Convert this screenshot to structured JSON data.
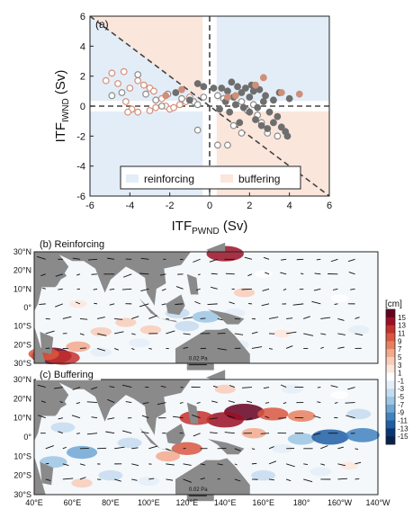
{
  "chart_data": [
    {
      "panel_label": "(a)",
      "type": "scatter",
      "xlabel_main": "ITF",
      "xlabel_sub": "PWND",
      "xlabel_unit": " (Sv)",
      "ylabel_main": "ITF",
      "ylabel_sub": "IWND",
      "ylabel_unit": " (Sv)",
      "xlim": [
        -6,
        6
      ],
      "ylim": [
        -6,
        6
      ],
      "xticks": [
        -6,
        -4,
        -2,
        0,
        2,
        4,
        6
      ],
      "yticks": [
        -6,
        -4,
        -2,
        0,
        2,
        4,
        6
      ],
      "region_colors": {
        "reinforcing": "#e3edf8",
        "buffering": "#fbe6dc"
      },
      "legend": {
        "reinforcing": "reinforcing",
        "buffering": "buffering",
        "placement": "bottom-center"
      },
      "marker_colors": {
        "filled": "#6e6e6e",
        "filled_orange": "#cf8f78",
        "open_gray": "#8c8c8c",
        "open_orange": "#d4907a"
      },
      "series": [
        {
          "style": "open_orange",
          "points": [
            [
              -5.2,
              1.7
            ],
            [
              -4.9,
              2.2
            ],
            [
              -4.3,
              2.3
            ],
            [
              -4.6,
              1.5
            ],
            [
              -4.0,
              1.2
            ],
            [
              -3.6,
              1.7
            ],
            [
              -3.3,
              1.4
            ],
            [
              -3.0,
              1.2
            ],
            [
              -2.8,
              1.0
            ],
            [
              -4.2,
              0.3
            ],
            [
              -3.9,
              -0.2
            ],
            [
              -4.1,
              -0.4
            ],
            [
              -3.6,
              -0.4
            ],
            [
              -3.0,
              -0.3
            ],
            [
              -2.7,
              -0.1
            ],
            [
              -2.2,
              0.0
            ],
            [
              -2.0,
              -0.2
            ],
            [
              -1.8,
              -0.1
            ],
            [
              -1.5,
              0.1
            ],
            [
              -1.2,
              0.3
            ],
            [
              -1.0,
              0.6
            ],
            [
              -2.4,
              0.5
            ]
          ]
        },
        {
          "style": "open_gray",
          "points": [
            [
              -4.9,
              0.7
            ],
            [
              -4.4,
              0.9
            ],
            [
              -3.6,
              2.1
            ],
            [
              -3.2,
              0.8
            ],
            [
              -2.7,
              0.4
            ],
            [
              -2.4,
              0.0
            ],
            [
              -2.1,
              0.8
            ],
            [
              -1.4,
              0.5
            ],
            [
              -0.8,
              0.3
            ],
            [
              -0.6,
              -1.6
            ],
            [
              0.4,
              -2.6
            ],
            [
              0.9,
              -2.6
            ],
            [
              1.2,
              -1.3
            ],
            [
              1.6,
              -1.8
            ],
            [
              1.9,
              -0.3
            ],
            [
              2.4,
              -0.6
            ],
            [
              2.6,
              -1.1
            ],
            [
              2.9,
              -1.8
            ],
            [
              3.4,
              -2.0
            ],
            [
              0.7,
              0.5
            ],
            [
              1.6,
              0.3
            ],
            [
              2.2,
              0.1
            ],
            [
              -0.3,
              0.6
            ],
            [
              0.4,
              0.7
            ],
            [
              -0.6,
              0.1
            ]
          ]
        },
        {
          "style": "filled",
          "points": [
            [
              -1.7,
              0.9
            ],
            [
              -1.0,
              0.4
            ],
            [
              -0.6,
              1.5
            ],
            [
              -0.3,
              1.3
            ],
            [
              0.2,
              1.2
            ],
            [
              0.9,
              1.0
            ],
            [
              1.1,
              1.6
            ],
            [
              1.4,
              1.3
            ],
            [
              1.6,
              0.9
            ],
            [
              1.8,
              1.2
            ],
            [
              2.1,
              1.4
            ],
            [
              2.5,
              1.1
            ],
            [
              2.8,
              0.7
            ],
            [
              3.2,
              0.4
            ],
            [
              3.5,
              0.9
            ],
            [
              4.0,
              0.5
            ],
            [
              0.8,
              0.3
            ],
            [
              1.3,
              0.1
            ],
            [
              1.7,
              -0.1
            ],
            [
              2.0,
              -0.4
            ],
            [
              2.3,
              -0.9
            ],
            [
              2.6,
              -1.3
            ],
            [
              2.9,
              -1.5
            ],
            [
              3.2,
              -1.1
            ],
            [
              3.6,
              -1.4
            ],
            [
              3.9,
              -2.0
            ],
            [
              3.8,
              -1.7
            ],
            [
              1.0,
              -0.4
            ],
            [
              0.5,
              -0.2
            ],
            [
              2.7,
              0.3
            ],
            [
              3.0,
              -0.4
            ],
            [
              1.5,
              -1.1
            ],
            [
              0.6,
              1.2
            ],
            [
              2.0,
              0.6
            ],
            [
              2.4,
              -0.1
            ],
            [
              3.4,
              -0.7
            ],
            [
              2.2,
              1.0
            ],
            [
              1.2,
              0.6
            ]
          ]
        },
        {
          "style": "filled_orange",
          "points": [
            [
              -2.2,
              0.7
            ],
            [
              -1.4,
              1.1
            ],
            [
              1.3,
              0.7
            ],
            [
              2.3,
              1.4
            ],
            [
              2.7,
              1.9
            ],
            [
              3.6,
              0.9
            ],
            [
              4.5,
              0.8
            ],
            [
              0.9,
              0.6
            ]
          ]
        }
      ]
    },
    {
      "panel_label": "(b) Reinforcing",
      "type": "heatmap",
      "lat_ticks": [
        "30°N",
        "20°N",
        "10°N",
        "0°",
        "10°S",
        "20°S",
        "30°S"
      ],
      "lon_ticks": [],
      "ref_arrow_label": "0.02 Pa",
      "ocean_anomalies": [
        {
          "lon": 49,
          "lat": -26,
          "value": 15
        },
        {
          "lon": 55,
          "lat": -27,
          "value": 11
        },
        {
          "lon": 45,
          "lat": -25,
          "value": 9
        },
        {
          "lon": 63,
          "lat": -21,
          "value": 5
        },
        {
          "lon": 75,
          "lat": -13,
          "value": 3
        },
        {
          "lon": 88,
          "lat": -8,
          "value": 3
        },
        {
          "lon": 101,
          "lat": -12,
          "value": 3
        },
        {
          "lon": 120,
          "lat": -10,
          "value": -5
        },
        {
          "lon": 130,
          "lat": -5,
          "value": -7
        },
        {
          "lon": 140,
          "lat": 29,
          "value": 13
        },
        {
          "lon": 145,
          "lat": -3,
          "value": -3
        },
        {
          "lon": 147,
          "lat": -20,
          "value": -3
        },
        {
          "lon": 160,
          "lat": 18,
          "value": -1
        },
        {
          "lon": 150,
          "lat": 8,
          "value": 3
        },
        {
          "lon": 170,
          "lat": -14,
          "value": 1
        },
        {
          "lon": 95,
          "lat": -19,
          "value": -3
        },
        {
          "lon": 75,
          "lat": -24,
          "value": -3
        },
        {
          "lon": 63,
          "lat": 2,
          "value": 1
        },
        {
          "lon": 200,
          "lat": 5,
          "value": -1
        },
        {
          "lon": 210,
          "lat": -12,
          "value": -3
        },
        {
          "lon": 115,
          "lat": -3,
          "value": -5
        }
      ]
    },
    {
      "panel_label": "(c) Buffering",
      "type": "heatmap",
      "lat_ticks": [
        "30°N",
        "20°N",
        "10°N",
        "0°",
        "10°S",
        "20°S",
        "30°S"
      ],
      "lon_ticks": [
        "40°E",
        "60°E",
        "80°E",
        "100°E",
        "120°E",
        "140°E",
        "160°E",
        "180°",
        "160°W",
        "140°W"
      ],
      "ref_arrow_label": "0.02 Pa",
      "ocean_anomalies": [
        {
          "lon": 150,
          "lat": 13,
          "value": 15
        },
        {
          "lon": 140,
          "lat": 9,
          "value": 13
        },
        {
          "lon": 165,
          "lat": 12,
          "value": 9
        },
        {
          "lon": 180,
          "lat": 11,
          "value": 7
        },
        {
          "lon": 125,
          "lat": 10,
          "value": 11
        },
        {
          "lon": 155,
          "lat": 2,
          "value": 5
        },
        {
          "lon": 180,
          "lat": -1,
          "value": -7
        },
        {
          "lon": 195,
          "lat": 0,
          "value": -13
        },
        {
          "lon": 212,
          "lat": 1,
          "value": -11
        },
        {
          "lon": 170,
          "lat": -6,
          "value": -3
        },
        {
          "lon": 120,
          "lat": -6,
          "value": 9
        },
        {
          "lon": 110,
          "lat": -10,
          "value": 5
        },
        {
          "lon": 90,
          "lat": -3,
          "value": -5
        },
        {
          "lon": 65,
          "lat": -8,
          "value": -9
        },
        {
          "lon": 50,
          "lat": -13,
          "value": -7
        },
        {
          "lon": 80,
          "lat": -20,
          "value": -5
        },
        {
          "lon": 65,
          "lat": -24,
          "value": 3
        },
        {
          "lon": 100,
          "lat": -23,
          "value": -3
        },
        {
          "lon": 160,
          "lat": -20,
          "value": -5
        },
        {
          "lon": 190,
          "lat": -18,
          "value": -3
        },
        {
          "lon": 205,
          "lat": -15,
          "value": 1
        },
        {
          "lon": 175,
          "lat": 25,
          "value": -3
        },
        {
          "lon": 200,
          "lat": 22,
          "value": -1
        },
        {
          "lon": 210,
          "lat": 12,
          "value": -5
        },
        {
          "lon": 55,
          "lat": 5,
          "value": -5
        },
        {
          "lon": 140,
          "lat": 25,
          "value": 3
        }
      ]
    }
  ],
  "colorbar": {
    "unit": "[cm]",
    "ticks": [
      "15",
      "13",
      "11",
      "9",
      "7",
      "5",
      "3",
      "1",
      "-1",
      "-3",
      "-5",
      "-7",
      "-9",
      "-11",
      "-13",
      "-15"
    ],
    "colors": [
      "#67001f",
      "#9a0f24",
      "#c4302e",
      "#d9573f",
      "#e8805f",
      "#f2a98c",
      "#f8cdb9",
      "#fbe8dc",
      "#ffffff",
      "#e4eef8",
      "#c5dcef",
      "#9cc6e3",
      "#6ea7d3",
      "#4182bf",
      "#1f5ea3",
      "#0b3675",
      "#07234d"
    ]
  }
}
